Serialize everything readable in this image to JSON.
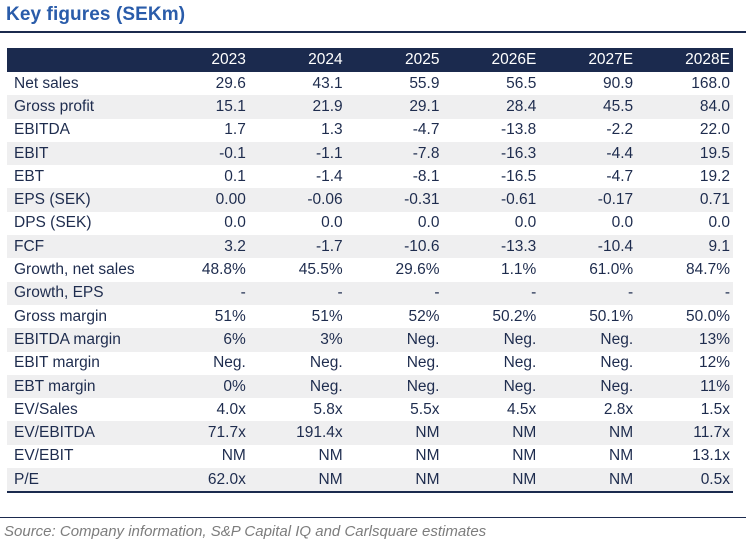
{
  "title": "Key figures (SEKm)",
  "colors": {
    "title_blue": "#2a5caa",
    "header_navy": "#1b2a4e",
    "row_alt_gray": "#efeff0",
    "text_navy": "#1e2c4e",
    "source_gray": "#7d7d7d"
  },
  "table": {
    "columns": [
      "2023",
      "2024",
      "2025",
      "2026E",
      "2027E",
      "2028E"
    ],
    "rows": [
      {
        "label": "Net sales",
        "values": [
          "29.6",
          "43.1",
          "55.9",
          "56.5",
          "90.9",
          "168.0"
        ]
      },
      {
        "label": "Gross profit",
        "values": [
          "15.1",
          "21.9",
          "29.1",
          "28.4",
          "45.5",
          "84.0"
        ]
      },
      {
        "label": "EBITDA",
        "values": [
          "1.7",
          "1.3",
          "-4.7",
          "-13.8",
          "-2.2",
          "22.0"
        ]
      },
      {
        "label": "EBIT",
        "values": [
          "-0.1",
          "-1.1",
          "-7.8",
          "-16.3",
          "-4.4",
          "19.5"
        ]
      },
      {
        "label": "EBT",
        "values": [
          "0.1",
          "-1.4",
          "-8.1",
          "-16.5",
          "-4.7",
          "19.2"
        ]
      },
      {
        "label": "EPS (SEK)",
        "values": [
          "0.00",
          "-0.06",
          "-0.31",
          "-0.61",
          "-0.17",
          "0.71"
        ]
      },
      {
        "label": "DPS (SEK)",
        "values": [
          "0.0",
          "0.0",
          "0.0",
          "0.0",
          "0.0",
          "0.0"
        ]
      },
      {
        "label": "FCF",
        "values": [
          "3.2",
          "-1.7",
          "-10.6",
          "-13.3",
          "-10.4",
          "9.1"
        ]
      },
      {
        "label": "Growth, net sales",
        "values": [
          "48.8%",
          "45.5%",
          "29.6%",
          "1.1%",
          "61.0%",
          "84.7%"
        ]
      },
      {
        "label": "Growth, EPS",
        "values": [
          "-",
          "-",
          "-",
          "-",
          "-",
          "-"
        ]
      },
      {
        "label": "Gross margin",
        "values": [
          "51%",
          "51%",
          "52%",
          "50.2%",
          "50.1%",
          "50.0%"
        ]
      },
      {
        "label": "EBITDA margin",
        "values": [
          "6%",
          "3%",
          "Neg.",
          "Neg.",
          "Neg.",
          "13%"
        ]
      },
      {
        "label": "EBIT margin",
        "values": [
          "Neg.",
          "Neg.",
          "Neg.",
          "Neg.",
          "Neg.",
          "12%"
        ]
      },
      {
        "label": "EBT margin",
        "values": [
          "0%",
          "Neg.",
          "Neg.",
          "Neg.",
          "Neg.",
          "11%"
        ]
      },
      {
        "label": "EV/Sales",
        "values": [
          "4.0x",
          "5.8x",
          "5.5x",
          "4.5x",
          "2.8x",
          "1.5x"
        ]
      },
      {
        "label": "EV/EBITDA",
        "values": [
          "71.7x",
          "191.4x",
          "NM",
          "NM",
          "NM",
          "11.7x"
        ]
      },
      {
        "label": "EV/EBIT",
        "values": [
          "NM",
          "NM",
          "NM",
          "NM",
          "NM",
          "13.1x"
        ]
      },
      {
        "label": "P/E",
        "values": [
          "62.0x",
          "NM",
          "NM",
          "NM",
          "NM",
          "0.5x"
        ]
      }
    ]
  },
  "source": "Source: Company information, S&P Capital IQ and Carlsquare estimates"
}
